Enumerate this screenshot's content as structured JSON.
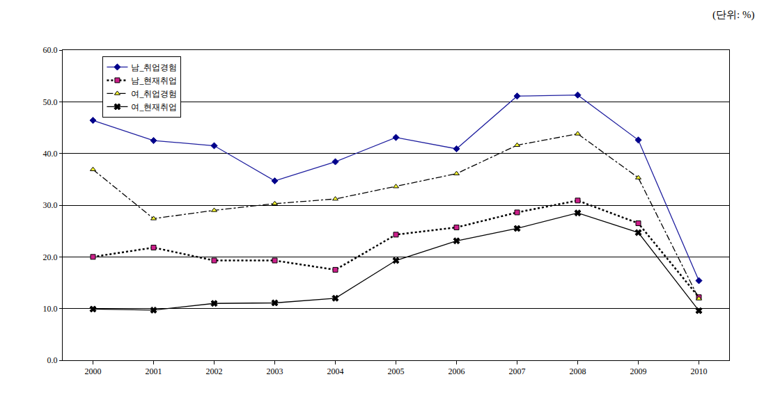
{
  "chart_data": {
    "type": "line",
    "subtitle": "(단위: %)",
    "categories": [
      "2000",
      "2001",
      "2002",
      "2003",
      "2004",
      "2005",
      "2006",
      "2007",
      "2008",
      "2009",
      "2010"
    ],
    "series": [
      {
        "name": "남_취업경험",
        "color": "#1f1f9f",
        "marker": "diamond",
        "line_style": "solid",
        "values": [
          46.4,
          42.5,
          41.5,
          34.7,
          38.4,
          43.1,
          40.9,
          51.1,
          51.3,
          42.6,
          15.4
        ]
      },
      {
        "name": "남_현재취업",
        "color": "#000000",
        "marker": "square",
        "line_style": "dot",
        "values": [
          20.0,
          21.8,
          19.3,
          19.3,
          17.5,
          24.3,
          25.7,
          28.6,
          30.9,
          26.5,
          12.2
        ]
      },
      {
        "name": "여_취업경험",
        "color": "#000000",
        "marker": "triangle-up",
        "line_style": "dashdot",
        "values": [
          36.9,
          27.4,
          29.0,
          30.3,
          31.2,
          33.6,
          36.1,
          41.6,
          43.8,
          35.3,
          11.9
        ]
      },
      {
        "name": "여_현재취업",
        "color": "#000000",
        "marker": "x",
        "line_style": "solid",
        "values": [
          9.9,
          9.7,
          11.0,
          11.1,
          12.0,
          19.3,
          23.1,
          25.5,
          28.5,
          24.7,
          9.6
        ]
      }
    ],
    "ylim": [
      0,
      60
    ],
    "yticks": [
      {
        "value": 0,
        "label": "0.0"
      },
      {
        "value": 10,
        "label": "10.0"
      },
      {
        "value": 20,
        "label": "20.0"
      },
      {
        "value": 30,
        "label": "30.0"
      },
      {
        "value": 40,
        "label": "40.0"
      },
      {
        "value": 50,
        "label": "50.0"
      },
      {
        "value": 60,
        "label": "60.0"
      }
    ],
    "grid": true,
    "legend": "upper left"
  }
}
